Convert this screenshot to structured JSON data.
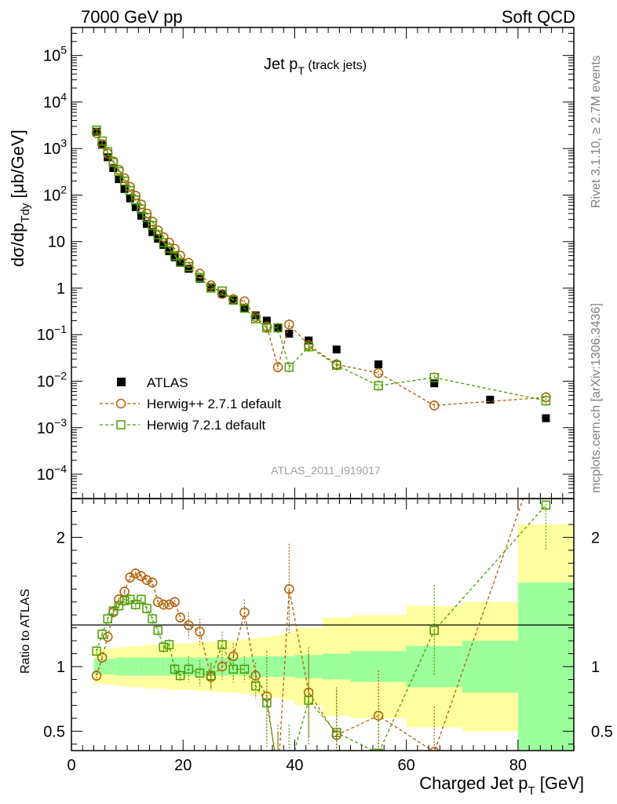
{
  "header": {
    "left": "7000 GeV pp",
    "right": "Soft QCD"
  },
  "side": {
    "rivet": "Rivet 3.1.10, ≥ 2.7M events",
    "mcplots": "mcplots.cern.ch [arXiv:1306.3436]"
  },
  "chart_data": {
    "type": "scatter",
    "title": "Jet p",
    "title_sub": "T",
    "title_suffix": " (track jets)",
    "analysis_id": "ATLAS_2011_I919017",
    "xlabel": "Charged Jet p",
    "xlabel_sub": "T",
    "xlabel_suffix": " [GeV]",
    "ylabel": "dσ/dp",
    "ylabel_sub": "Tdy",
    "ylabel_suffix": " [μb/GeV]",
    "ratio_ylabel": "Ratio to ATLAS",
    "xlim": [
      0,
      90
    ],
    "ylim": [
      3e-05,
      400000
    ],
    "yscale": "log",
    "ratio_ylim": [
      0.35,
      2.3
    ],
    "x_ticks": [
      "0",
      "20",
      "40",
      "60",
      "80"
    ],
    "y_ticks": [
      {
        "m": "10",
        "e": "5",
        "v": 100000
      },
      {
        "m": "10",
        "e": "4",
        "v": 10000
      },
      {
        "m": "10",
        "e": "3",
        "v": 1000
      },
      {
        "m": "10",
        "e": "2",
        "v": 100
      },
      {
        "m": "10",
        "e": "",
        "v": 10
      },
      {
        "m": "1",
        "e": "",
        "v": 1
      },
      {
        "m": "10",
        "e": "−1",
        "v": 0.1
      },
      {
        "m": "10",
        "e": "−2",
        "v": 0.01
      },
      {
        "m": "10",
        "e": "−3",
        "v": 0.001
      },
      {
        "m": "10",
        "e": "−4",
        "v": 0.0001
      }
    ],
    "ratio_ticks": [
      "0.5",
      "1",
      "2"
    ],
    "legend": {
      "position": "lower-left",
      "entries": [
        "ATLAS",
        "Herwig++ 2.7.1 default",
        "Herwig 7.2.1 default"
      ]
    },
    "series": [
      {
        "name": "ATLAS",
        "color": "#000000",
        "marker": "filled-square",
        "x": [
          4.5,
          5.5,
          6.5,
          7.5,
          8.5,
          9.5,
          10.5,
          11.5,
          12.5,
          13.5,
          14.5,
          15.5,
          16.5,
          17.5,
          18.5,
          19.5,
          21,
          23,
          25,
          27,
          29,
          31,
          33,
          35,
          37,
          39,
          42.5,
          47.5,
          55,
          65,
          75,
          85
        ],
        "y": [
          2300,
          1200,
          650,
          380,
          220,
          135,
          85,
          55,
          36,
          24,
          16,
          11.5,
          8.5,
          6.2,
          4.6,
          3.5,
          2.6,
          1.6,
          1.05,
          0.75,
          0.55,
          0.38,
          0.26,
          0.2,
          0.14,
          0.105,
          0.075,
          0.048,
          0.023,
          0.009,
          0.004,
          0.0016
        ]
      },
      {
        "name": "Herwig++ 2.7.1 default",
        "color": "#b35c00",
        "marker": "open-circle",
        "x": [
          4.5,
          5.5,
          6.5,
          7.5,
          8.5,
          9.5,
          10.5,
          11.5,
          12.5,
          13.5,
          14.5,
          15.5,
          16.5,
          17.5,
          18.5,
          19.5,
          21,
          23,
          25,
          27,
          29,
          31,
          33,
          35,
          37,
          39,
          42.5,
          47.5,
          55,
          65,
          85
        ],
        "y": [
          2150,
          1250,
          780,
          530,
          350,
          230,
          150,
          97,
          63,
          40,
          27,
          17.5,
          12.5,
          9.5,
          7,
          5,
          3.5,
          2.05,
          1.15,
          0.75,
          0.58,
          0.52,
          0.24,
          0.15,
          0.02,
          0.165,
          0.06,
          0.023,
          0.015,
          0.003,
          0.0045
        ],
        "ratio": [
          0.93,
          1.07,
          1.23,
          1.42,
          1.52,
          1.58,
          1.69,
          1.72,
          1.7,
          1.67,
          1.65,
          1.5,
          1.48,
          1.48,
          1.5,
          1.38,
          1.32,
          1.27,
          0.92,
          1.0,
          1.08,
          1.42,
          0.93,
          0.77,
          0.14,
          1.6,
          0.8,
          0.47,
          0.62,
          0.34,
          2.8
        ]
      },
      {
        "name": "Herwig 7.2.1 default",
        "color": "#4a9c00",
        "marker": "open-square",
        "x": [
          4.5,
          5.5,
          6.5,
          7.5,
          8.5,
          9.5,
          10.5,
          11.5,
          12.5,
          13.5,
          14.5,
          15.5,
          16.5,
          17.5,
          18.5,
          19.5,
          21,
          23,
          25,
          27,
          29,
          31,
          33,
          35,
          37,
          39,
          42.5,
          47.5,
          55,
          65,
          85
        ],
        "y": [
          2500,
          1450,
          850,
          500,
          320,
          200,
          125,
          78,
          50,
          33,
          22,
          14,
          9.5,
          7.2,
          5,
          3.6,
          2.9,
          1.7,
          1.0,
          0.87,
          0.55,
          0.37,
          0.22,
          0.14,
          0.14,
          0.02,
          0.055,
          0.022,
          0.008,
          0.012,
          0.0038
        ],
        "ratio": [
          1.12,
          1.25,
          1.37,
          1.43,
          1.47,
          1.51,
          1.52,
          1.48,
          1.52,
          1.45,
          1.37,
          1.28,
          1.15,
          1.17,
          0.98,
          0.93,
          0.98,
          0.95,
          0.93,
          1.17,
          0.98,
          0.98,
          0.85,
          0.72,
          0.2,
          0.2,
          0.74,
          0.49,
          0.33,
          1.28,
          2.25
        ]
      }
    ],
    "ratio_band": {
      "edges": [
        4,
        5,
        6,
        7,
        8,
        9,
        10,
        11,
        12,
        13,
        14,
        15,
        16,
        17,
        18,
        19,
        20,
        22,
        24,
        26,
        28,
        30,
        32,
        34,
        36,
        38,
        40,
        45,
        50,
        60,
        70,
        80,
        90
      ],
      "stat": [
        0.06,
        0.06,
        0.06,
        0.06,
        0.07,
        0.07,
        0.07,
        0.07,
        0.07,
        0.07,
        0.07,
        0.07,
        0.07,
        0.07,
        0.07,
        0.07,
        0.07,
        0.07,
        0.07,
        0.07,
        0.07,
        0.07,
        0.08,
        0.08,
        0.08,
        0.08,
        0.09,
        0.1,
        0.12,
        0.16,
        0.2,
        0.65
      ],
      "total": [
        0.13,
        0.13,
        0.14,
        0.14,
        0.15,
        0.15,
        0.16,
        0.16,
        0.16,
        0.17,
        0.17,
        0.17,
        0.17,
        0.18,
        0.18,
        0.18,
        0.18,
        0.19,
        0.19,
        0.2,
        0.2,
        0.21,
        0.22,
        0.23,
        0.24,
        0.26,
        0.3,
        0.38,
        0.4,
        0.47,
        0.5,
        1.1
      ]
    }
  },
  "colors": {
    "atlas": "#000000",
    "herwigpp": "#b35c00",
    "herwig7": "#4a9c00",
    "band_total": "#ffff9f",
    "band_stat": "#9cff9c"
  }
}
